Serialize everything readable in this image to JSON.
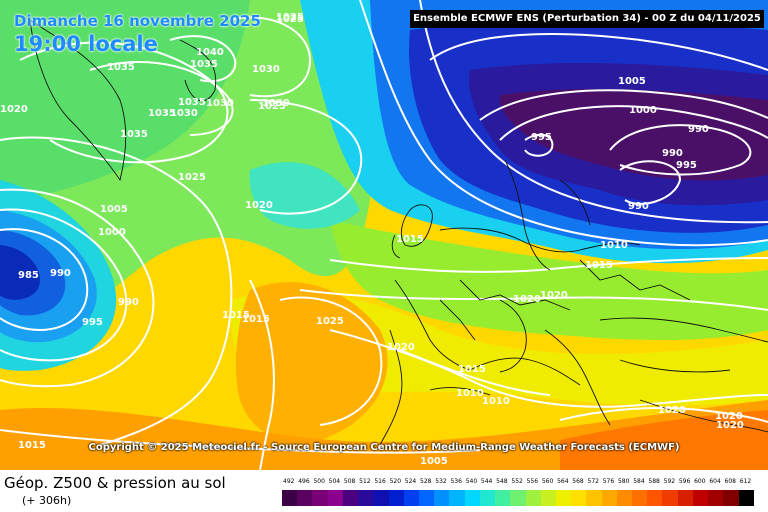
{
  "header": {
    "date_line": "Dimanche 16 novembre 2025",
    "local_time": "19:00 locale",
    "model": "Ensemble ECMWF ENS  (Perturbation 34)  -  00 Z du 04/11/2025"
  },
  "copyright": "Copyright © 2025 Meteociel.fr - Source European Centre for Medium-Range Weather Forecasts (ECMWF)",
  "footer": {
    "title": "Géop. Z500 & pression au sol",
    "subtitle": "(+ 306h)"
  },
  "scale": {
    "values": [
      "492",
      "496",
      "500",
      "504",
      "508",
      "512",
      "516",
      "520",
      "524",
      "528",
      "532",
      "536",
      "540",
      "544",
      "548",
      "552",
      "556",
      "560",
      "564",
      "568",
      "572",
      "576",
      "580",
      "584",
      "588",
      "592",
      "596",
      "600",
      "604",
      "608",
      "612"
    ],
    "colors": [
      "#3c0046",
      "#5a005e",
      "#7a0076",
      "#8c0090",
      "#4b0082",
      "#2a0a9a",
      "#1010b0",
      "#0020d0",
      "#0040f0",
      "#0066ff",
      "#0090ff",
      "#00b4ff",
      "#00d8ff",
      "#20e8d0",
      "#40f0a0",
      "#70f070",
      "#a0f040",
      "#c8f020",
      "#eef000",
      "#ffe000",
      "#ffc400",
      "#ffa800",
      "#ff8c00",
      "#ff7000",
      "#ff5400",
      "#f03c00",
      "#d82000",
      "#c00000",
      "#a00000",
      "#800000",
      "#000000"
    ]
  },
  "pressure_labels": [
    {
      "text": "1025"
    },
    {
      "text": "1025"
    },
    {
      "text": "1040"
    },
    {
      "text": "1035"
    },
    {
      "text": "1035"
    },
    {
      "text": "1030"
    },
    {
      "text": "1035"
    },
    {
      "text": "1030"
    },
    {
      "text": "1030"
    },
    {
      "text": "1025"
    },
    {
      "text": "1035"
    },
    {
      "text": "1035"
    },
    {
      "text": "1030"
    },
    {
      "text": "1020"
    },
    {
      "text": "1025"
    },
    {
      "text": "1005"
    },
    {
      "text": "1000"
    },
    {
      "text": "1020"
    },
    {
      "text": "985"
    },
    {
      "text": "990"
    },
    {
      "text": "990"
    },
    {
      "text": "995"
    },
    {
      "text": "1015"
    },
    {
      "text": "1015"
    },
    {
      "text": "1025"
    },
    {
      "text": "1005"
    },
    {
      "text": "1000"
    },
    {
      "text": "995"
    },
    {
      "text": "990"
    },
    {
      "text": "990"
    },
    {
      "text": "995"
    },
    {
      "text": "990"
    },
    {
      "text": "1010"
    },
    {
      "text": "1015"
    },
    {
      "text": "1015"
    },
    {
      "text": "1020"
    },
    {
      "text": "1020"
    },
    {
      "text": "1020"
    },
    {
      "text": "1015"
    },
    {
      "text": "1010"
    },
    {
      "text": "1010"
    },
    {
      "text": "1020"
    },
    {
      "text": "1020"
    },
    {
      "text": "1020"
    },
    {
      "text": "1015"
    },
    {
      "text": "1005"
    }
  ]
}
